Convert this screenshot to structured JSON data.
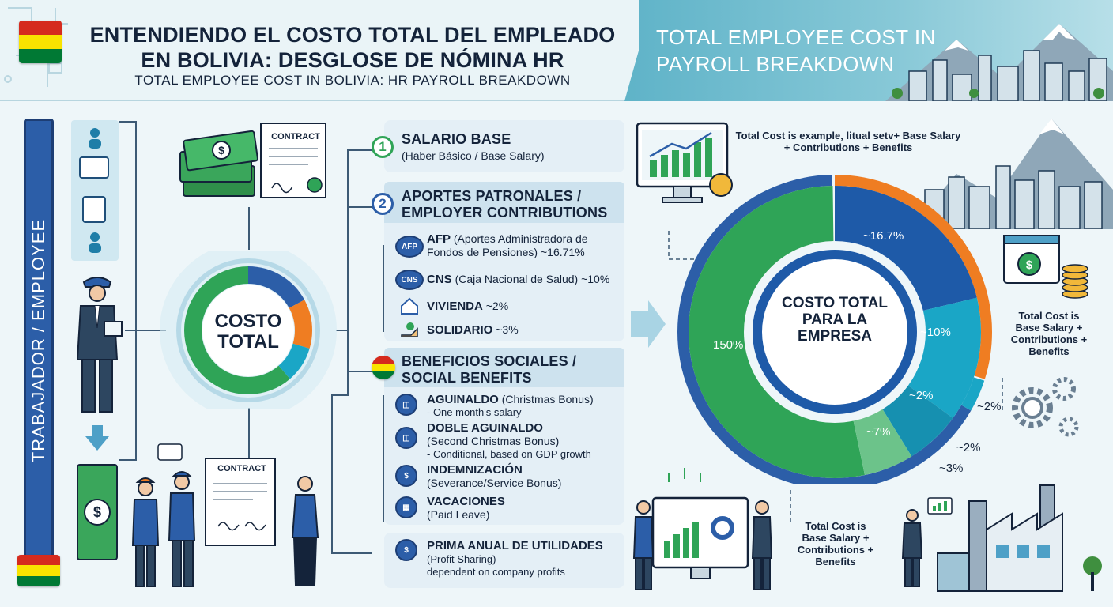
{
  "header": {
    "title_es": "ENTENDIENDO EL COSTO TOTAL DEL EMPLEADO EN BOLIVIA: DESGLOSE DE NÓMINA HR",
    "title_en": "TOTAL EMPLOYEE COST IN BOLIVIA: HR PAYROLL BREAKDOWN",
    "title_right": "TOTAL EMPLOYEE COST IN PAYROLL BREAKDOWN"
  },
  "left": {
    "vertical_label": "TRABAJADOR / EMPLOYEE",
    "contract_top": "CONTRACT",
    "contract_bottom": "CONTRACT"
  },
  "center_donut": {
    "label": "COSTO TOTAL"
  },
  "section1": {
    "number": "1",
    "title": "SALARIO BASE",
    "subtitle": "(Haber Básico / Base Salary)"
  },
  "section2": {
    "number": "2",
    "title": "APORTES PATRONALES / EMPLOYER CONTRIBUTIONS",
    "items": [
      {
        "icon": "AFP",
        "name": "AFP",
        "text": "(Aportes Administradora de Fondos de Pensiones) ~16.71%"
      },
      {
        "icon": "CNS",
        "name": "CNS",
        "text": "(Caja Nacional de Salud) ~10%"
      },
      {
        "name": "VIVIENDA",
        "text": "~2%"
      },
      {
        "name": "SOLIDARIO",
        "text": "~3%"
      }
    ]
  },
  "section3": {
    "title": "BENEFICIOS SOCIALES / SOCIAL BENEFITS",
    "items": [
      {
        "name": "AGUINALDO",
        "text": "(Christmas Bonus)",
        "note": "- One month's salary"
      },
      {
        "name": "DOBLE AGUINALDO",
        "text": "(Second Christmas Bonus)",
        "note": "- Conditional, based on GDP growth"
      },
      {
        "name": "INDEMNIZACIÓN",
        "text": "(Severance/Service Bonus)"
      },
      {
        "name": "VACACIONES",
        "text": "(Paid Leave)"
      }
    ]
  },
  "section4": {
    "title": "PRIMA ANUAL DE UTILIDADES",
    "subtitle": "(Profit Sharing)",
    "note": "dependent on company profits"
  },
  "right": {
    "note_top": "Total Cost is example, litual setv+ Base Salary + Contributions + Benefits",
    "note_mid": "Total Cost is Base Salary + Contributions + Benefits",
    "note_bottom": "Total Cost is Base Salary + Contributions + Benefits",
    "donut_center": "COSTO TOTAL PARA LA EMPRESA",
    "labels": {
      "afp": "~16.7%",
      "base": "150%",
      "cns": "~10%",
      "viv": "~2%",
      "ben": "~7%",
      "out2a": "~2%",
      "out2b": "~2%",
      "out3": "~3%"
    }
  },
  "colors": {
    "blue": "#2c5ea8",
    "orange": "#ef7d22",
    "green": "#2fa457",
    "teal": "#1aa6c6",
    "flag_red": "#d52b1e",
    "flag_yellow": "#f9e300",
    "flag_green": "#007934"
  }
}
